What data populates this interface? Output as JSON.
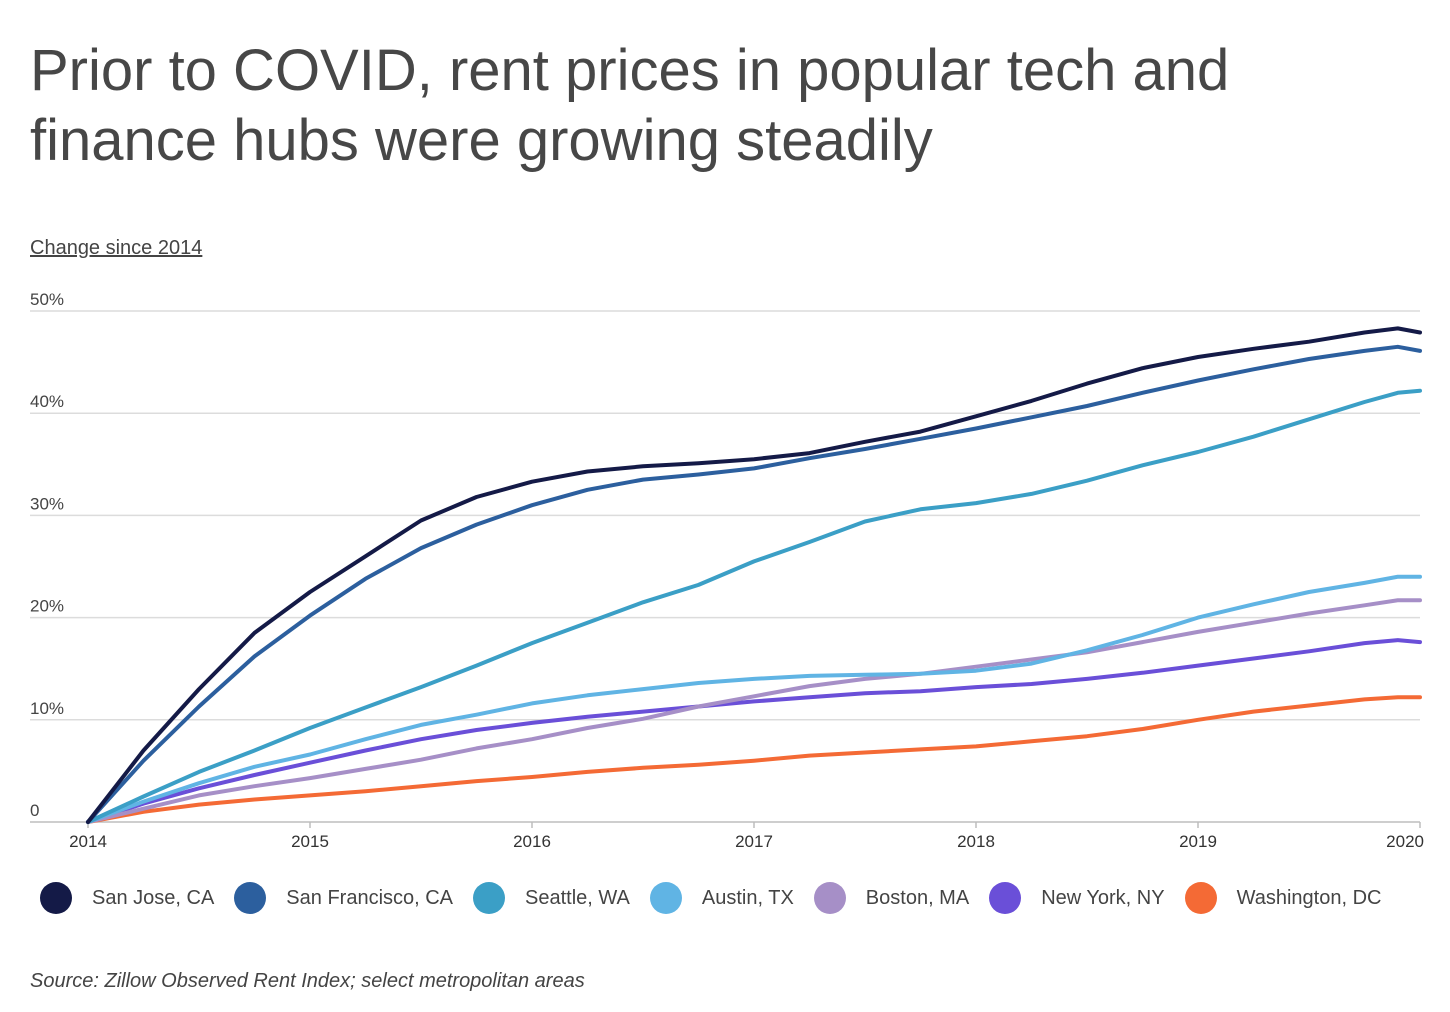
{
  "chart_data": {
    "type": "line",
    "title": "Prior to COVID, rent prices in popular tech and finance hubs were growing steadily",
    "ylabel": "Change since 2014",
    "xlabel": "",
    "ylim": [
      0,
      50
    ],
    "xlim": [
      2014,
      2020
    ],
    "grid": true,
    "yticks": [
      {
        "value": 0,
        "label": "0"
      },
      {
        "value": 10,
        "label": "10%"
      },
      {
        "value": 20,
        "label": "20%"
      },
      {
        "value": 30,
        "label": "30%"
      },
      {
        "value": 40,
        "label": "40%"
      },
      {
        "value": 50,
        "label": "50%"
      }
    ],
    "xticks": [
      {
        "value": 2014,
        "label": "2014"
      },
      {
        "value": 2015,
        "label": "2015"
      },
      {
        "value": 2016,
        "label": "2016"
      },
      {
        "value": 2017,
        "label": "2017"
      },
      {
        "value": 2018,
        "label": "2018"
      },
      {
        "value": 2019,
        "label": "2019"
      },
      {
        "value": 2020,
        "label": "2020"
      }
    ],
    "x": [
      2014,
      2014.25,
      2014.5,
      2014.75,
      2015,
      2015.25,
      2015.5,
      2015.75,
      2016,
      2016.25,
      2016.5,
      2016.75,
      2017,
      2017.25,
      2017.5,
      2017.75,
      2018,
      2018.25,
      2018.5,
      2018.75,
      2019,
      2019.25,
      2019.5,
      2019.75,
      2019.9,
      2020
    ],
    "series": [
      {
        "name": "San Jose, CA",
        "color": "#141a47",
        "values": [
          0,
          7,
          13,
          18.5,
          22.5,
          26,
          29.5,
          31.8,
          33.3,
          34.3,
          34.8,
          35.1,
          35.5,
          36.1,
          37.2,
          38.2,
          39.7,
          41.2,
          42.9,
          44.4,
          45.5,
          46.3,
          47,
          47.9,
          48.3,
          47.9
        ]
      },
      {
        "name": "San Francisco, CA",
        "color": "#2c5f9e",
        "values": [
          0,
          6,
          11.3,
          16.2,
          20.2,
          23.8,
          26.8,
          29.1,
          31,
          32.5,
          33.5,
          34,
          34.6,
          35.6,
          36.5,
          37.5,
          38.5,
          39.6,
          40.7,
          42,
          43.2,
          44.3,
          45.3,
          46.1,
          46.5,
          46.1
        ]
      },
      {
        "name": "Seattle, WA",
        "color": "#3b9fc6",
        "values": [
          0,
          2.5,
          4.9,
          7,
          9.2,
          11.2,
          13.2,
          15.3,
          17.5,
          19.5,
          21.5,
          23.2,
          25.5,
          27.4,
          29.4,
          30.6,
          31.2,
          32.1,
          33.4,
          34.9,
          36.2,
          37.7,
          39.4,
          41.1,
          42,
          42.2
        ]
      },
      {
        "name": "Austin, TX",
        "color": "#60b4e4",
        "values": [
          0,
          2,
          3.8,
          5.4,
          6.6,
          8.1,
          9.5,
          10.5,
          11.6,
          12.4,
          13,
          13.6,
          14,
          14.3,
          14.4,
          14.5,
          14.8,
          15.5,
          16.8,
          18.3,
          20,
          21.3,
          22.5,
          23.4,
          24,
          24
        ]
      },
      {
        "name": "Boston, MA",
        "color": "#a68fc7",
        "values": [
          0,
          1.3,
          2.6,
          3.5,
          4.3,
          5.2,
          6.1,
          7.2,
          8.1,
          9.2,
          10.1,
          11.3,
          12.3,
          13.3,
          14,
          14.5,
          15.2,
          15.9,
          16.6,
          17.6,
          18.6,
          19.5,
          20.4,
          21.2,
          21.7,
          21.7
        ]
      },
      {
        "name": "New York, NY",
        "color": "#6a4fd8",
        "values": [
          0,
          1.8,
          3.3,
          4.6,
          5.8,
          7,
          8.1,
          9,
          9.7,
          10.3,
          10.8,
          11.3,
          11.8,
          12.2,
          12.6,
          12.8,
          13.2,
          13.5,
          14,
          14.6,
          15.3,
          16,
          16.7,
          17.5,
          17.8,
          17.6
        ]
      },
      {
        "name": "Washington, DC",
        "color": "#f46a35",
        "values": [
          0,
          1,
          1.7,
          2.2,
          2.6,
          3,
          3.5,
          4,
          4.4,
          4.9,
          5.3,
          5.6,
          6,
          6.5,
          6.8,
          7.1,
          7.4,
          7.9,
          8.4,
          9.1,
          10,
          10.8,
          11.4,
          12,
          12.2,
          12.2
        ]
      }
    ]
  },
  "legend_title": "",
  "source": "Source: Zillow Observed Rent Index; select metropolitan areas"
}
